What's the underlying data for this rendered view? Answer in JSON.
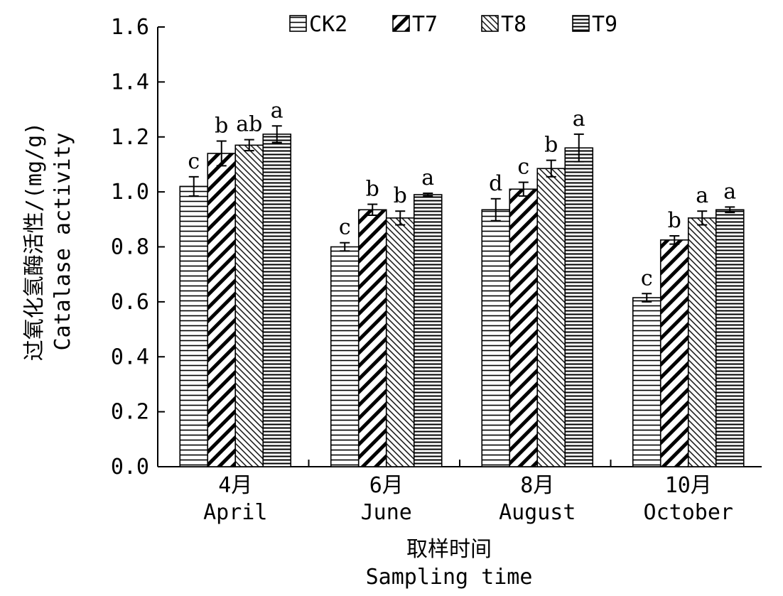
{
  "chart_data": {
    "type": "bar",
    "categories": [
      {
        "cn": "4月",
        "en": "April"
      },
      {
        "cn": "6月",
        "en": "June"
      },
      {
        "cn": "8月",
        "en": "August"
      },
      {
        "cn": "10月",
        "en": "October"
      }
    ],
    "series": [
      {
        "name": "CK2",
        "values": [
          1.02,
          0.8,
          0.935,
          0.615
        ],
        "errors": [
          0.035,
          0.015,
          0.04,
          0.015
        ],
        "labels": [
          "c",
          "c",
          "d",
          "c"
        ],
        "pattern": "horizontal-lines"
      },
      {
        "name": "T7",
        "values": [
          1.14,
          0.935,
          1.01,
          0.825
        ],
        "errors": [
          0.045,
          0.02,
          0.025,
          0.015
        ],
        "labels": [
          "b",
          "b",
          "c",
          "b"
        ],
        "pattern": "backslash-diagonal-thick"
      },
      {
        "name": "T8",
        "values": [
          1.17,
          0.905,
          1.085,
          0.905
        ],
        "errors": [
          0.02,
          0.025,
          0.03,
          0.025
        ],
        "labels": [
          "ab",
          "b",
          "b",
          "a"
        ],
        "pattern": "forward-diagonal-thin"
      },
      {
        "name": "T9",
        "values": [
          1.21,
          0.99,
          1.16,
          0.935
        ],
        "errors": [
          0.03,
          0.005,
          0.05,
          0.01
        ],
        "labels": [
          "a",
          "a",
          "a",
          "a"
        ],
        "pattern": "horizontal-lines-boxed"
      }
    ],
    "ylim": [
      0,
      1.6
    ],
    "yticks": [
      "0.0",
      "0.2",
      "0.4",
      "0.6",
      "0.8",
      "1.0",
      "1.2",
      "1.4",
      "1.6"
    ],
    "ylabel_cn": "过氧化氢酶活性/(mg/g)",
    "ylabel_en": "Catalase activity",
    "xlabel_cn": "取样时间",
    "xlabel_en": "Sampling time",
    "legend_position": "top",
    "grid": false
  }
}
